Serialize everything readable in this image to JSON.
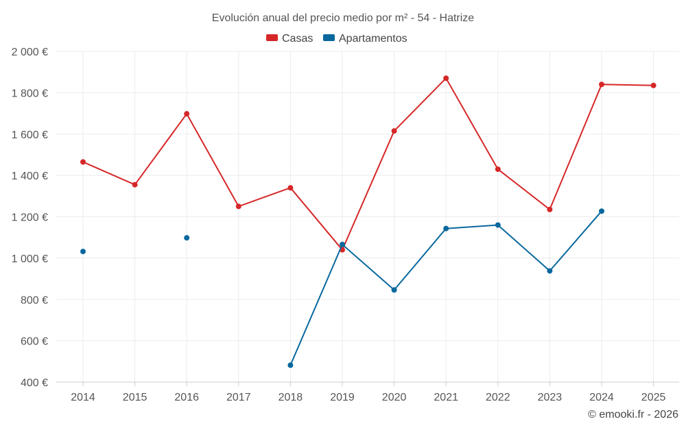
{
  "chart_data": {
    "type": "line",
    "title": "Evolución anual del precio medio por m² - 54 - Hatrize",
    "xlabel": "",
    "ylabel": "",
    "categories": [
      "2014",
      "2015",
      "2016",
      "2017",
      "2018",
      "2019",
      "2020",
      "2021",
      "2022",
      "2023",
      "2024",
      "2025"
    ],
    "ylim": [
      400,
      2000
    ],
    "yticks": [
      400,
      600,
      800,
      1000,
      1200,
      1400,
      1600,
      1800,
      2000
    ],
    "ytick_labels": [
      "400 €",
      "600 €",
      "800 €",
      "1 000 €",
      "1 200 €",
      "1 400 €",
      "1 600 €",
      "1 800 €",
      "2 000 €"
    ],
    "grid": true,
    "legend_position": "top-center",
    "series": [
      {
        "name": "Casas",
        "color": "#d62728",
        "values": [
          1465,
          1355,
          1698,
          1250,
          1340,
          1040,
          1615,
          1870,
          1430,
          1235,
          1840,
          1835
        ]
      },
      {
        "name": "Apartamentos",
        "color": "#08689e",
        "values": [
          1032,
          null,
          1098,
          null,
          482,
          1066,
          846,
          1143,
          1160,
          938,
          1227,
          null
        ]
      }
    ]
  },
  "credit": "© emooki.fr - 2026"
}
